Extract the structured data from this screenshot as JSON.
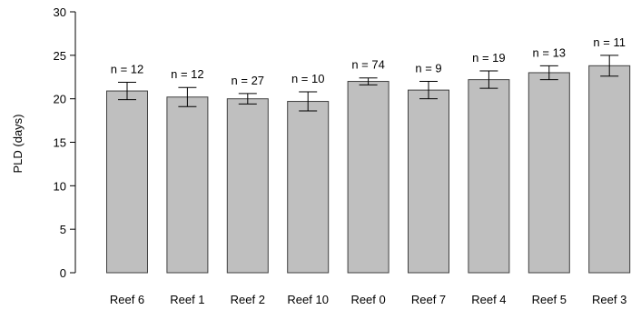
{
  "chart_data": {
    "type": "bar",
    "title": "",
    "xlabel": "",
    "ylabel": "PLD (days)",
    "ylim": [
      0,
      30
    ],
    "yticks": [
      0,
      5,
      10,
      15,
      20,
      25,
      30
    ],
    "grid": false,
    "legend": "none",
    "categories": [
      "Reef 6",
      "Reef 1",
      "Reef 2",
      "Reef 10",
      "Reef 0",
      "Reef 7",
      "Reef 4",
      "Reef 5",
      "Reef 3"
    ],
    "values": [
      20.9,
      20.2,
      20.0,
      19.7,
      22.0,
      21.0,
      22.2,
      23.0,
      23.8
    ],
    "errors": [
      1.0,
      1.1,
      0.6,
      1.1,
      0.4,
      1.0,
      1.0,
      0.8,
      1.2
    ],
    "data_labels": [
      "n = 12",
      "n = 12",
      "n = 27",
      "n = 10",
      "n = 74",
      "n = 9",
      "n = 19",
      "n = 13",
      "n = 11"
    ],
    "colors": {
      "bar_fill": "#bfbfbf",
      "bar_stroke": "#404040",
      "axis": "#000000"
    }
  }
}
